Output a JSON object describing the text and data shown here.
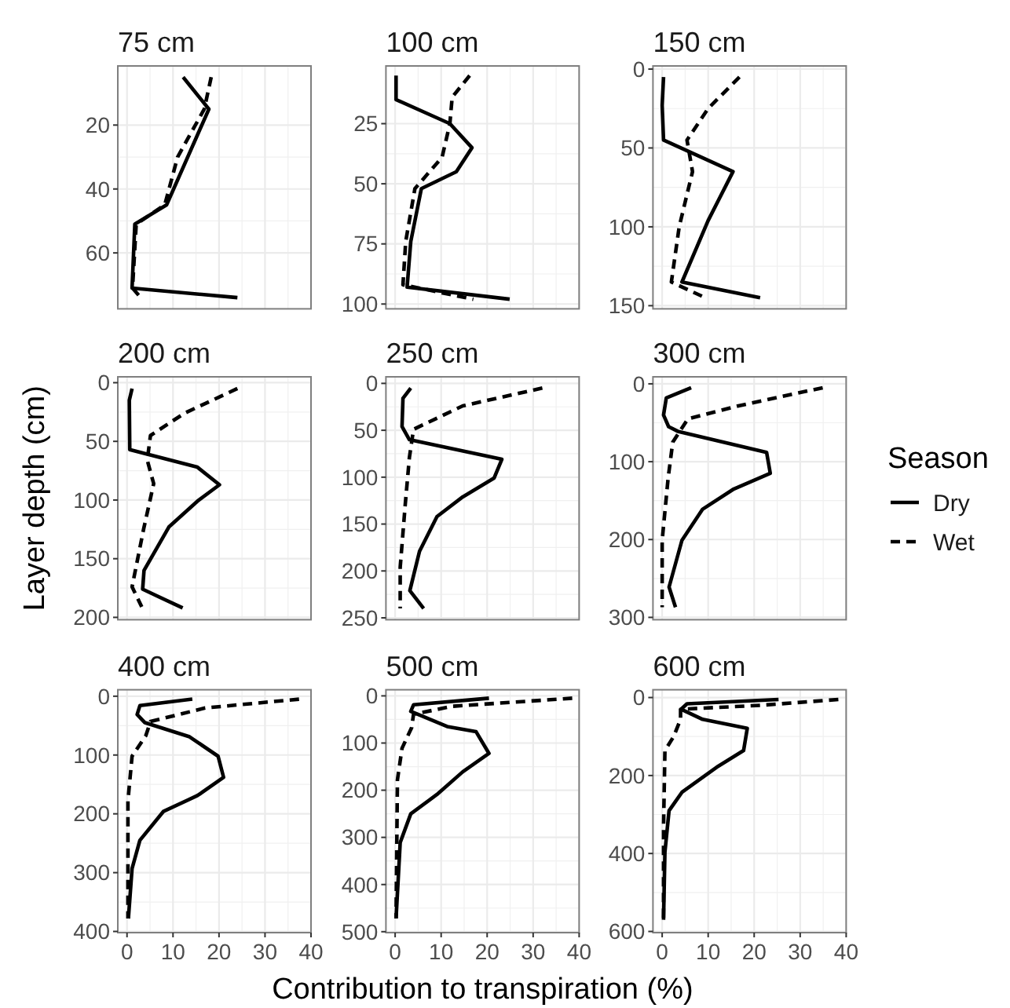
{
  "chart_data": [
    {
      "type": "line",
      "title": "75 cm",
      "xlim": [
        -2,
        40
      ],
      "xticks": [
        0,
        10,
        20,
        30,
        40
      ],
      "ylim": [
        77.5,
        1.5
      ],
      "yticks": [
        20,
        40,
        60
      ],
      "grid": true,
      "tick_labels": "y",
      "series": [
        {
          "color": "#000000",
          "line_style": "solid",
          "x": [
            12.2,
            17.8,
            8.6,
            1.7,
            1.1,
            24
          ],
          "values": [
            5,
            15,
            45,
            51,
            71,
            74
          ]
        },
        {
          "color": "#000000",
          "line_style": "dashed",
          "x": [
            18.3,
            16.8,
            11,
            8.2,
            2,
            1.2,
            3
          ],
          "values": [
            5,
            15,
            30,
            45,
            51,
            71,
            74
          ]
        }
      ]
    },
    {
      "type": "line",
      "title": "100 cm",
      "xlim": [
        -2,
        40
      ],
      "xticks": [
        0,
        10,
        20,
        30,
        40
      ],
      "ylim": [
        102,
        1
      ],
      "yticks": [
        25,
        50,
        75,
        100
      ],
      "grid": true,
      "tick_labels": "y",
      "series": [
        {
          "color": "#000000",
          "line_style": "solid",
          "x": [
            0.2,
            0.2,
            11.9,
            16.7,
            13.3,
            5.7,
            3.4,
            2.6,
            24.9
          ],
          "values": [
            5,
            15,
            25,
            35,
            45,
            52,
            74,
            93,
            98
          ]
        },
        {
          "color": "#000000",
          "line_style": "dashed",
          "x": [
            16.2,
            12.4,
            11.9,
            10.2,
            4.3,
            2.3,
            1.7,
            17
          ],
          "values": [
            5,
            14,
            25,
            39,
            52,
            74,
            92,
            98
          ]
        }
      ]
    },
    {
      "type": "line",
      "title": "150 cm",
      "xlim": [
        -2,
        40
      ],
      "xticks": [
        0,
        10,
        20,
        30,
        40
      ],
      "ylim": [
        152,
        -2
      ],
      "yticks": [
        0,
        50,
        100,
        150
      ],
      "grid": true,
      "tick_labels": "y",
      "series": [
        {
          "color": "#000000",
          "line_style": "solid",
          "x": [
            0.3,
            0,
            0.3,
            15.4,
            10,
            4.3,
            21.3
          ],
          "values": [
            5,
            23,
            45,
            65,
            96,
            135,
            145
          ]
        },
        {
          "color": "#000000",
          "line_style": "dashed",
          "x": [
            16.8,
            10,
            5.4,
            6.6,
            3.7,
            2,
            9.4
          ],
          "values": [
            5,
            25,
            45,
            65,
            100,
            135,
            145
          ]
        }
      ]
    },
    {
      "type": "line",
      "title": "200 cm",
      "ylabel": "Layer depth (cm)",
      "xlim": [
        -2,
        40
      ],
      "xticks": [
        0,
        10,
        20,
        30,
        40
      ],
      "ylim": [
        202,
        -5
      ],
      "yticks": [
        0,
        50,
        100,
        150,
        200
      ],
      "grid": true,
      "tick_labels": "y",
      "series": [
        {
          "color": "#000000",
          "line_style": "solid",
          "x": [
            1.1,
            0.5,
            0.6,
            15.3,
            20.1,
            15.3,
            9.1,
            3.7,
            3.4,
            12.1
          ],
          "values": [
            5,
            15,
            57,
            72,
            87,
            101,
            123,
            160,
            176,
            192
          ]
        },
        {
          "color": "#000000",
          "line_style": "dashed",
          "x": [
            24,
            12.5,
            5.1,
            4.4,
            5.8,
            3.6,
            1.1,
            3.2
          ],
          "values": [
            5,
            26,
            45,
            66,
            86,
            125,
            174,
            191
          ]
        }
      ]
    },
    {
      "type": "line",
      "title": "250 cm",
      "xlim": [
        -2,
        40
      ],
      "xticks": [
        0,
        10,
        20,
        30,
        40
      ],
      "ylim": [
        252,
        -7
      ],
      "yticks": [
        0,
        50,
        100,
        150,
        200,
        250
      ],
      "grid": true,
      "tick_labels": "y",
      "series": [
        {
          "color": "#000000",
          "line_style": "solid",
          "x": [
            3.4,
            1.7,
            1.5,
            3.1,
            23.2,
            21.5,
            14.7,
            9.1,
            5.3,
            3.2,
            6.2
          ],
          "values": [
            5,
            16,
            46,
            60,
            81,
            101,
            121,
            142,
            179,
            221,
            240
          ]
        },
        {
          "color": "#000000",
          "line_style": "dashed",
          "x": [
            32,
            14.7,
            4,
            3.1,
            2.2,
            1.1,
            1.1
          ],
          "values": [
            5,
            24,
            49,
            79,
            129,
            196,
            240
          ]
        }
      ]
    },
    {
      "type": "line",
      "title": "300 cm",
      "legend_title": "Season",
      "legend": "right",
      "xlim": [
        -2,
        40
      ],
      "xticks": [
        0,
        10,
        20,
        30,
        40
      ],
      "ylim": [
        303,
        -9
      ],
      "yticks": [
        0,
        100,
        200,
        300
      ],
      "grid": true,
      "tick_labels": "y",
      "series": [
        {
          "name": "Dry",
          "color": "#000000",
          "line_style": "solid",
          "x": [
            6.3,
            0.9,
            0.3,
            1.4,
            3.4,
            22.7,
            23.5,
            15.6,
            8.8,
            4.3,
            1.5,
            2.9
          ],
          "values": [
            5,
            18,
            40,
            55,
            61,
            88,
            115,
            135,
            161,
            201,
            261,
            287
          ]
        },
        {
          "name": "Wet",
          "color": "#000000",
          "line_style": "dashed",
          "x": [
            34.9,
            16.8,
            5.6,
            2.3,
            1.3,
            0,
            0
          ],
          "values": [
            5,
            28,
            45,
            75,
            121,
            201,
            287
          ]
        }
      ]
    },
    {
      "type": "line",
      "title": "400 cm",
      "xlim": [
        -2,
        40
      ],
      "xticks": [
        0,
        10,
        20,
        30,
        40
      ],
      "ylim": [
        402,
        -11
      ],
      "yticks": [
        0,
        100,
        200,
        300,
        400
      ],
      "grid": true,
      "series": [
        {
          "color": "#000000",
          "line_style": "solid",
          "x": [
            14.2,
            2.8,
            2.2,
            3.9,
            13.6,
            19.8,
            21,
            15.3,
            7.9,
            2.8,
            1.1,
            0.3
          ],
          "values": [
            5,
            16,
            31,
            45,
            69,
            102,
            138,
            169,
            196,
            245,
            293,
            378
          ]
        },
        {
          "color": "#000000",
          "line_style": "dashed",
          "x": [
            37.4,
            17,
            5.1,
            4.1,
            1.1,
            0.2,
            0.2
          ],
          "values": [
            5,
            20,
            43,
            67,
            102,
            178,
            378
          ]
        }
      ]
    },
    {
      "type": "line",
      "title": "500 cm",
      "xlabel": "Contribution to transpiration (%)",
      "xlim": [
        -2,
        40
      ],
      "xticks": [
        0,
        10,
        20,
        30,
        40
      ],
      "ylim": [
        502,
        -13
      ],
      "yticks": [
        0,
        100,
        200,
        300,
        400,
        500
      ],
      "grid": true,
      "series": [
        {
          "color": "#000000",
          "line_style": "solid",
          "x": [
            20.4,
            4,
            3.4,
            11.3,
            17.6,
            20.4,
            14.7,
            9.1,
            3.4,
            1.1,
            0.2
          ],
          "values": [
            5,
            19,
            33,
            65,
            76,
            122,
            161,
            209,
            250,
            311,
            472
          ]
        },
        {
          "color": "#000000",
          "line_style": "dashed",
          "x": [
            38.5,
            12.5,
            4,
            3.6,
            1.5,
            0.5,
            0.2
          ],
          "values": [
            5,
            22,
            39,
            67,
            111,
            178,
            472
          ]
        }
      ]
    },
    {
      "type": "line",
      "title": "600 cm",
      "xlim": [
        -2,
        40
      ],
      "xticks": [
        0,
        10,
        20,
        30,
        40
      ],
      "ylim": [
        603,
        -20
      ],
      "yticks": [
        0,
        200,
        400,
        600
      ],
      "grid": true,
      "series": [
        {
          "color": "#000000",
          "line_style": "solid",
          "x": [
            25.3,
            5.4,
            4.1,
            8.8,
            18.5,
            17.7,
            12.2,
            4.3,
            1.5,
            0.6,
            0.3
          ],
          "values": [
            5,
            16,
            30,
            56,
            79,
            136,
            176,
            243,
            290,
            396,
            570
          ]
        },
        {
          "color": "#000000",
          "line_style": "dashed",
          "x": [
            38.3,
            21.3,
            4,
            4,
            2.5,
            0.6,
            0.3,
            0.3
          ],
          "values": [
            5,
            20,
            30,
            56,
            100,
            136,
            330,
            570
          ]
        }
      ]
    }
  ]
}
